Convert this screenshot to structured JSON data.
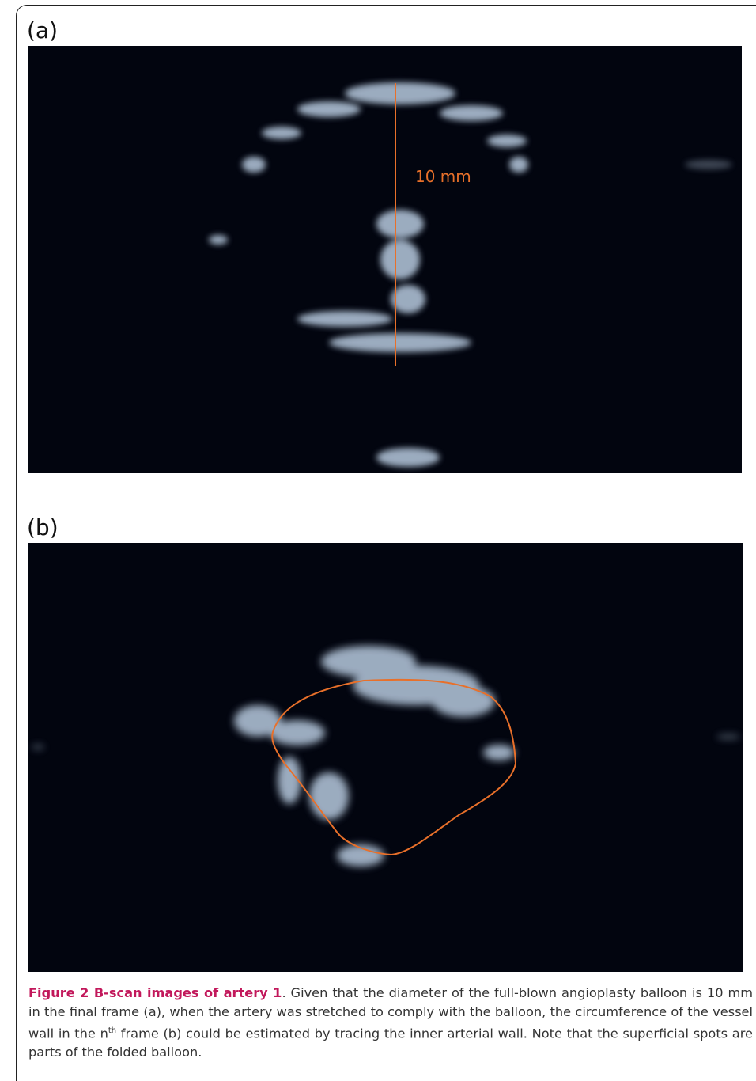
{
  "panels": [
    {
      "label": "(a)",
      "annotation": "10 mm"
    },
    {
      "label": "(b)"
    }
  ],
  "caption": {
    "title": "Figure 2 B-scan images of artery 1",
    "text_before_sup": ". Given that the diameter of the full-blown angioplasty balloon is 10 mm in the final frame (a), when the artery was stretched to comply with the balloon, the circumference of the vessel wall in the n",
    "sup": "th",
    "text_after_sup": " frame (b) could be estimated by tracing the inner arterial wall. Note that the superficial spots are parts of the folded balloon."
  }
}
